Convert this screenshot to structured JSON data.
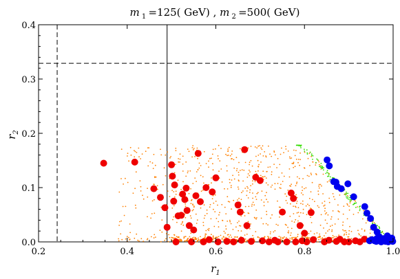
{
  "chart_data": {
    "type": "scatter",
    "title": "m 1 =125( GeV) , m 2 =500( GeV)",
    "xlabel": "r1",
    "ylabel": "r2",
    "xlim": [
      0.2,
      1.0
    ],
    "ylim": [
      0.0,
      0.4
    ],
    "xticks": [
      0.2,
      0.4,
      0.6,
      0.8,
      1.0
    ],
    "yticks": [
      0.0,
      0.1,
      0.2,
      0.3,
      0.4
    ],
    "xtick_labels": [
      "0.2",
      "0.4",
      "0.6",
      "0.8",
      "1.0"
    ],
    "ytick_labels": [
      "0.0",
      "0.1",
      "0.2",
      "0.3",
      "0.4"
    ],
    "grid": false,
    "reference_lines": [
      {
        "orientation": "vertical",
        "x": 0.242,
        "style": "dashed"
      },
      {
        "orientation": "vertical",
        "x": 0.49,
        "style": "solid"
      },
      {
        "orientation": "horizontal",
        "y": 0.329,
        "style": "dashed"
      }
    ],
    "colors": {
      "red": "#ee0000",
      "blue": "#0000ee",
      "orange": "#ff8000",
      "green": "#33dd00"
    },
    "series": [
      {
        "color": "red",
        "marker": "large-circle",
        "points": [
          [
            0.347,
            0.145
          ],
          [
            0.417,
            0.147
          ],
          [
            0.46,
            0.098
          ],
          [
            0.475,
            0.082
          ],
          [
            0.485,
            0.063
          ],
          [
            0.49,
            0.027
          ],
          [
            0.5,
            0.142
          ],
          [
            0.502,
            0.121
          ],
          [
            0.505,
            0.075
          ],
          [
            0.507,
            0.105
          ],
          [
            0.51,
            0.0
          ],
          [
            0.515,
            0.048
          ],
          [
            0.522,
            0.049
          ],
          [
            0.525,
            0.088
          ],
          [
            0.53,
            0.078
          ],
          [
            0.533,
            0.099
          ],
          [
            0.535,
            0.058
          ],
          [
            0.54,
            0.03
          ],
          [
            0.545,
            0.0
          ],
          [
            0.55,
            0.022
          ],
          [
            0.555,
            0.085
          ],
          [
            0.56,
            0.163
          ],
          [
            0.565,
            0.074
          ],
          [
            0.572,
            0.0
          ],
          [
            0.578,
            0.1
          ],
          [
            0.585,
            0.004
          ],
          [
            0.592,
            0.092
          ],
          [
            0.6,
            0.118
          ],
          [
            0.605,
            0.0
          ],
          [
            0.625,
            0.001
          ],
          [
            0.64,
            0.0
          ],
          [
            0.65,
            0.068
          ],
          [
            0.655,
            0.055
          ],
          [
            0.658,
            0.003
          ],
          [
            0.665,
            0.17
          ],
          [
            0.67,
            0.03
          ],
          [
            0.68,
            0.001
          ],
          [
            0.69,
            0.119
          ],
          [
            0.7,
            0.113
          ],
          [
            0.705,
            0.002
          ],
          [
            0.72,
            0.0
          ],
          [
            0.733,
            0.003
          ],
          [
            0.74,
            0.0
          ],
          [
            0.75,
            0.055
          ],
          [
            0.76,
            0.0
          ],
          [
            0.77,
            0.09
          ],
          [
            0.775,
            0.08
          ],
          [
            0.78,
            0.0
          ],
          [
            0.79,
            0.03
          ],
          [
            0.795,
            0.002
          ],
          [
            0.8,
            0.016
          ],
          [
            0.805,
            0.0
          ],
          [
            0.815,
            0.054
          ],
          [
            0.82,
            0.004
          ],
          [
            0.845,
            0.0
          ],
          [
            0.855,
            0.003
          ],
          [
            0.872,
            0.001
          ],
          [
            0.88,
            0.005
          ],
          [
            0.89,
            0.0
          ],
          [
            0.9,
            0.0
          ],
          [
            0.915,
            0.002
          ],
          [
            0.925,
            0.0
          ],
          [
            0.935,
            0.005
          ]
        ]
      },
      {
        "color": "blue",
        "marker": "large-circle",
        "points": [
          [
            0.851,
            0.151
          ],
          [
            0.856,
            0.14
          ],
          [
            0.866,
            0.111
          ],
          [
            0.871,
            0.11
          ],
          [
            0.874,
            0.102
          ],
          [
            0.883,
            0.098
          ],
          [
            0.898,
            0.107
          ],
          [
            0.911,
            0.083
          ],
          [
            0.936,
            0.065
          ],
          [
            0.941,
            0.053
          ],
          [
            0.949,
            0.043
          ],
          [
            0.956,
            0.027
          ],
          [
            0.964,
            0.018
          ],
          [
            0.968,
            0.01
          ],
          [
            0.952,
            0.004
          ],
          [
            0.958,
            0.002
          ],
          [
            0.962,
            0.001
          ],
          [
            0.967,
            0.003
          ],
          [
            0.97,
            0.002
          ],
          [
            0.973,
            0.0
          ],
          [
            0.977,
            0.006
          ],
          [
            0.981,
            0.004
          ],
          [
            0.984,
            0.002
          ],
          [
            0.987,
            0.011
          ],
          [
            0.99,
            0.006
          ],
          [
            0.993,
            0.004
          ],
          [
            0.996,
            0.003
          ],
          [
            0.999,
            0.001
          ],
          [
            0.983,
            0.001
          ],
          [
            0.975,
            0.001
          ],
          [
            0.963,
            0.006
          ],
          [
            0.947,
            0.002
          ],
          [
            0.989,
            0.0
          ],
          [
            0.997,
            0.007
          ]
        ]
      }
    ],
    "background_points": [
      {
        "color": "orange",
        "marker": "small-dot",
        "region": "filled triangle between r1 0.38 and 1.0, r2 0 to 0.178, bounded on the right by the line from (0.80, 0.178) to (1.0, 0)"
      },
      {
        "color": "green",
        "marker": "small-dot",
        "region": "thin band along the right edge from (0.80, 0.178) to (1.0, 0)"
      }
    ]
  }
}
